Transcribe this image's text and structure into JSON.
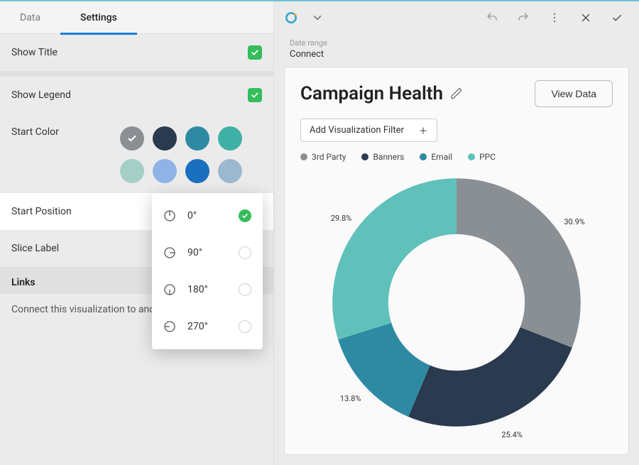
{
  "leftPanel": {
    "tabs": {
      "data": "Data",
      "settings": "Settings",
      "active": "settings"
    },
    "rows": {
      "showTitle": {
        "label": "Show Title",
        "checked": true,
        "checkbox_color": "#35bd5b"
      },
      "showLegend": {
        "label": "Show Legend",
        "checked": true,
        "checkbox_color": "#35bd5b"
      },
      "startColor": {
        "label": "Start Color",
        "selected_index": 0,
        "swatches": [
          "#8a8f94",
          "#2a3a4f",
          "#2e8aa3",
          "#3fb0a6",
          "#a5cfc6",
          "#8fb3e6",
          "#1b6fbf",
          "#9cb8cf"
        ],
        "check_color": "#ffffff"
      },
      "startPosition": {
        "label": "Start Position",
        "options": [
          "0°",
          "90°",
          "180°",
          "270°"
        ],
        "selected_index": 0,
        "radio_on_color": "#35bd5b"
      },
      "sliceLabel": {
        "label": "Slice Label"
      }
    },
    "linksSection": {
      "heading": "Links",
      "help": "Connect this visualization to anothe"
    }
  },
  "toolbar": {
    "logo_colors": {
      "ring": "#35a6c9",
      "accent": "#f2a13a"
    }
  },
  "breadcrumb": {
    "small": "Date range",
    "main": "Connect"
  },
  "card": {
    "title": "Campaign Health",
    "viewData": "View Data",
    "addFilter": "Add Visualization Filter",
    "background": "#fafafa"
  },
  "chart": {
    "type": "donut",
    "inner_radius_ratio": 0.55,
    "background": "#fafafa",
    "label_fontsize": 11,
    "series": [
      {
        "name": "3rd Party",
        "value": 30.9,
        "color": "#8a8f94",
        "label": "30.9%"
      },
      {
        "name": "Banners",
        "value": 25.4,
        "color": "#2a3a4f",
        "label": "25.4%"
      },
      {
        "name": "Email",
        "value": 13.8,
        "color": "#2e8aa3",
        "label": "13.8%"
      },
      {
        "name": "PPC",
        "value": 29.8,
        "color": "#60c1bb",
        "label": "29.8%"
      }
    ],
    "legend_fontsize": 12
  }
}
